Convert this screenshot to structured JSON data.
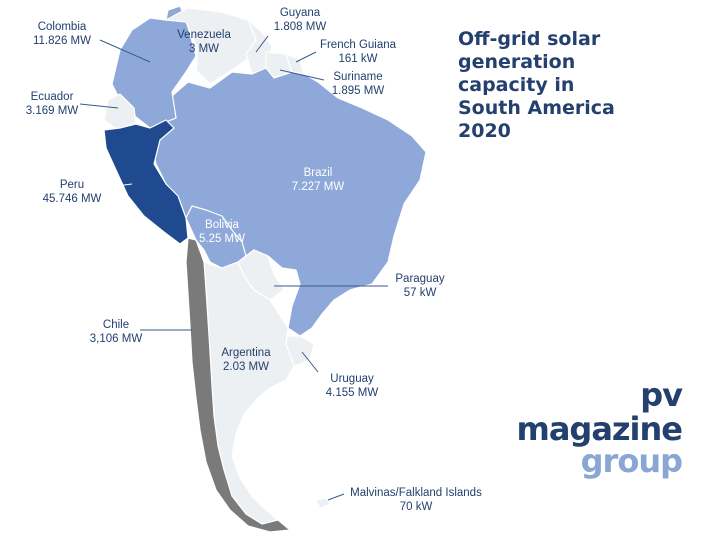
{
  "title": "Off-grid solar\ngeneration\ncapacity in\nSouth America\n2020",
  "colors": {
    "peru": "#1f4a8f",
    "light_blue": "#8ea8d9",
    "chile": "#7a7a7a",
    "no_data": "#edf0f3",
    "label_text": "#23406e"
  },
  "countries": [
    {
      "name": "Colombia",
      "value": "11.826 MW"
    },
    {
      "name": "Venezuela",
      "value": "3 MW"
    },
    {
      "name": "Guyana",
      "value": "1.808 MW"
    },
    {
      "name": "French Guiana",
      "value": "161 kW"
    },
    {
      "name": "Suriname",
      "value": "1.895 MW"
    },
    {
      "name": "Ecuador",
      "value": "3.169 MW"
    },
    {
      "name": "Peru",
      "value": "45.746 MW"
    },
    {
      "name": "Brazil",
      "value": "7.227 MW"
    },
    {
      "name": "Bolivia",
      "value": "5.25 MW"
    },
    {
      "name": "Paraguay",
      "value": "57 kW"
    },
    {
      "name": "Chile",
      "value": "3,106 MW"
    },
    {
      "name": "Argentina",
      "value": "2.03 MW"
    },
    {
      "name": "Uruguay",
      "value": "4.155 MW"
    },
    {
      "name": "Malvinas/Falkland Islands",
      "value": "70 kW"
    }
  ],
  "logo": {
    "main": "pv magazine",
    "sub": "group"
  }
}
